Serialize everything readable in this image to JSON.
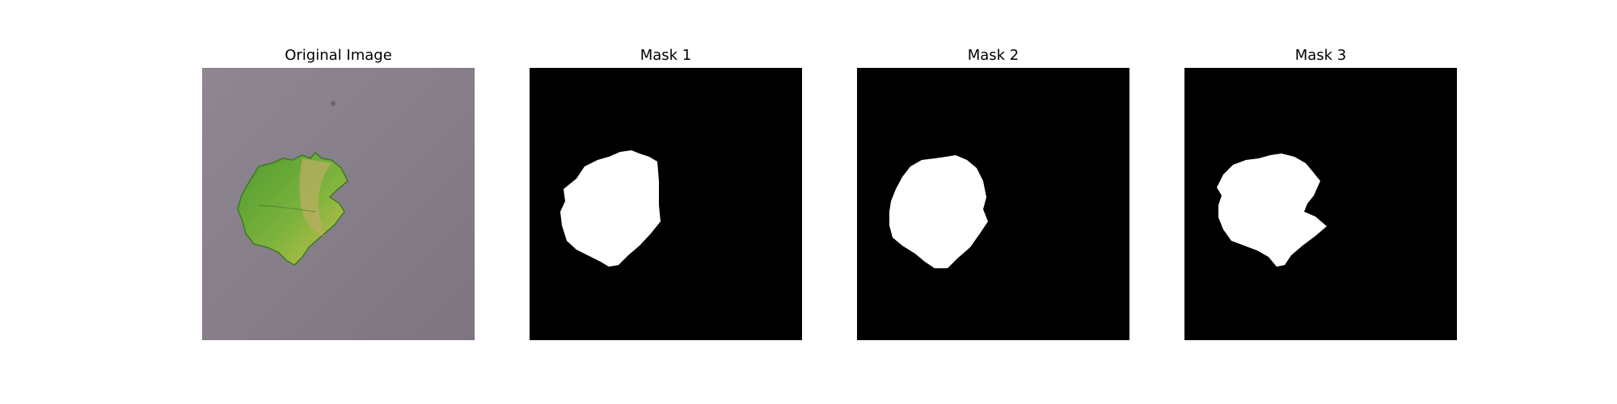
{
  "panels": [
    {
      "title": "Original Image",
      "content": "photo of a green-yellow leaf on a gray surface"
    },
    {
      "title": "Mask 1",
      "content": "binary mask"
    },
    {
      "title": "Mask 2",
      "content": "binary mask"
    },
    {
      "title": "Mask 3",
      "content": "binary mask"
    }
  ],
  "colors": {
    "background": "#ffffff",
    "mask_background": "#000000",
    "mask_foreground": "#ffffff",
    "surface": "#8a8088",
    "leaf_green": "#5fa23a",
    "leaf_yellow": "#c9c24a"
  }
}
